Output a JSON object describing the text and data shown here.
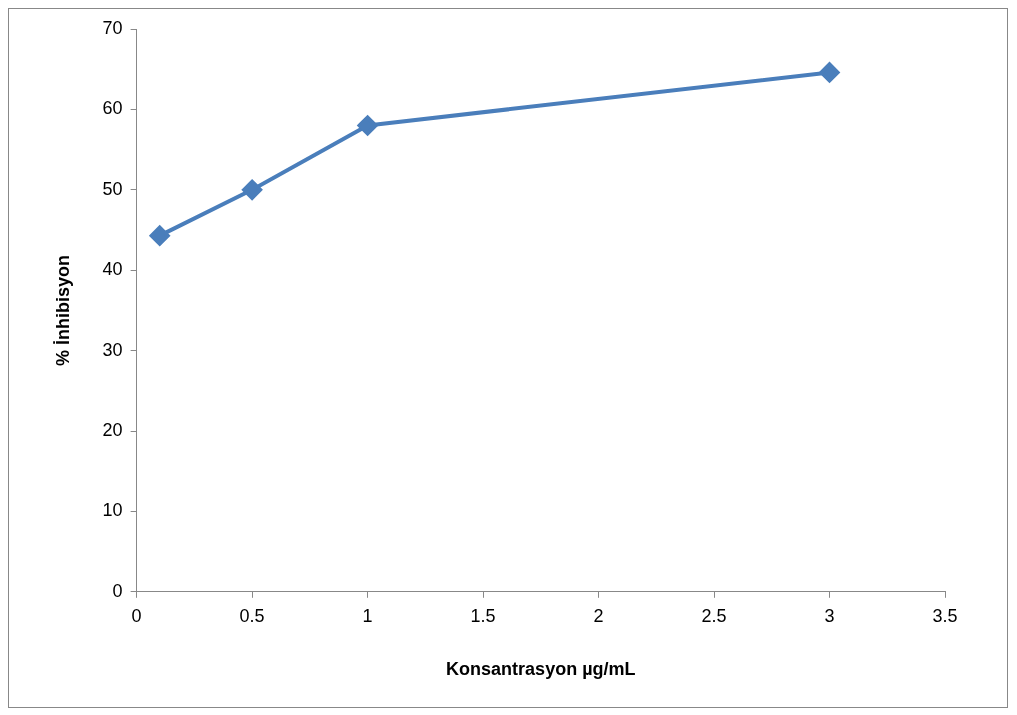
{
  "chart_data": {
    "type": "line",
    "xlabel": "Konsantrasyon µg/mL",
    "ylabel": "% İnhibisyon",
    "x": [
      0.1,
      0.5,
      1,
      3
    ],
    "series": [
      {
        "color": "#4a7ebb",
        "values": [
          44.3,
          50,
          58,
          64.6
        ]
      }
    ],
    "xlim": [
      0,
      3.5
    ],
    "xticks": [
      0,
      0.5,
      1,
      1.5,
      2,
      2.5,
      3,
      3.5
    ],
    "ylim": [
      0,
      70
    ],
    "yticks": [
      0,
      10,
      20,
      30,
      40,
      50,
      60,
      70
    ],
    "grid": false,
    "legend": false,
    "marker": "diamond",
    "line_style": "solid"
  }
}
